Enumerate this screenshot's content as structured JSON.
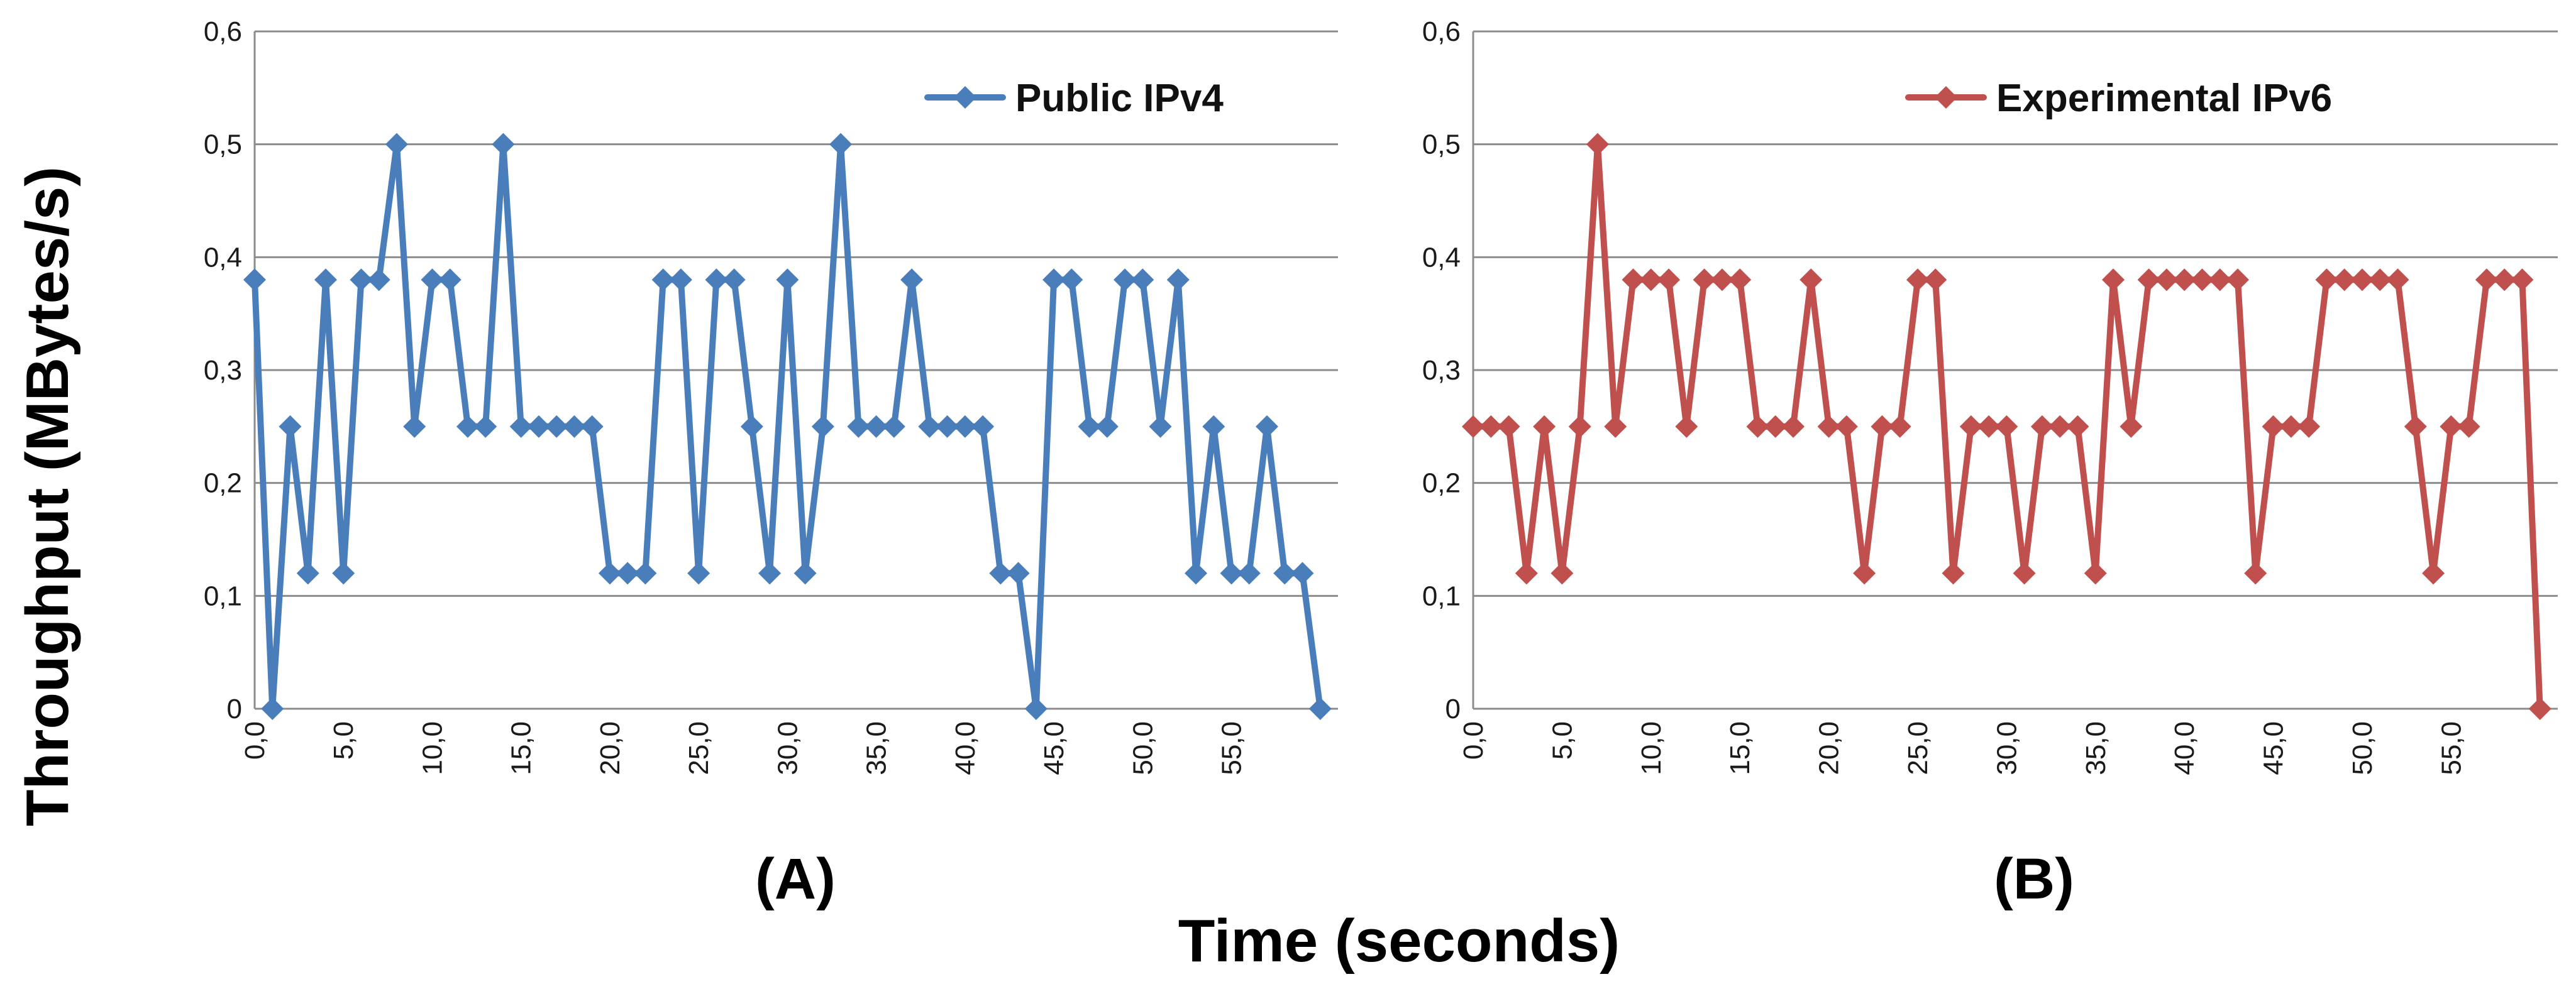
{
  "figure": {
    "xlabel": "Time (seconds)",
    "ylabel": "Throughput (MBytes/s)"
  },
  "chart_data": [
    {
      "type": "line",
      "panel_label": "(A)",
      "legend": "Public IPv4",
      "color": "#4a7ebb",
      "x_tick_labels": [
        "0,0",
        "5,0",
        "10,0",
        "15,0",
        "20,0",
        "25,0",
        "30,0",
        "35,0",
        "40,0",
        "45,0",
        "50,0",
        "55,0"
      ],
      "y_tick_labels": [
        "0",
        "0,1",
        "0,2",
        "0,3",
        "0,4",
        "0,5",
        "0,6"
      ],
      "ylim": [
        0,
        0.6
      ],
      "xlim": [
        0,
        61
      ],
      "series": [
        {
          "name": "Public IPv4",
          "values": [
            0.38,
            0,
            0.25,
            0.12,
            0.38,
            0.12,
            0.38,
            0.38,
            0.5,
            0.25,
            0.38,
            0.38,
            0.25,
            0.25,
            0.5,
            0.25,
            0.25,
            0.25,
            0.25,
            0.25,
            0.12,
            0.12,
            0.12,
            0.38,
            0.38,
            0.12,
            0.38,
            0.38,
            0.25,
            0.12,
            0.38,
            0.12,
            0.25,
            0.5,
            0.25,
            0.25,
            0.25,
            0.38,
            0.25,
            0.25,
            0.25,
            0.25,
            0.12,
            0.12,
            0,
            0.38,
            0.38,
            0.25,
            0.25,
            0.38,
            0.38,
            0.25,
            0.38,
            0.12,
            0.25,
            0.12,
            0.12,
            0.25,
            0.12,
            0.12,
            0
          ]
        }
      ]
    },
    {
      "type": "line",
      "panel_label": "(B)",
      "legend": "Experimental IPv6",
      "color": "#c0504d",
      "x_tick_labels": [
        "0,0",
        "5,0",
        "10,0",
        "15,0",
        "20,0",
        "25,0",
        "30,0",
        "35,0",
        "40,0",
        "45,0",
        "50,0",
        "55,0"
      ],
      "y_tick_labels": [
        "0",
        "0,1",
        "0,2",
        "0,3",
        "0,4",
        "0,5",
        "0,6"
      ],
      "ylim": [
        0,
        0.6
      ],
      "xlim": [
        0,
        61
      ],
      "series": [
        {
          "name": "Experimental IPv6",
          "values": [
            0.25,
            0.25,
            0.25,
            0.12,
            0.25,
            0.12,
            0.25,
            0.5,
            0.25,
            0.38,
            0.38,
            0.38,
            0.25,
            0.38,
            0.38,
            0.38,
            0.25,
            0.25,
            0.25,
            0.38,
            0.25,
            0.25,
            0.12,
            0.25,
            0.25,
            0.38,
            0.38,
            0.12,
            0.25,
            0.25,
            0.25,
            0.12,
            0.25,
            0.25,
            0.25,
            0.12,
            0.38,
            0.25,
            0.38,
            0.38,
            0.38,
            0.38,
            0.38,
            0.38,
            0.12,
            0.25,
            0.25,
            0.25,
            0.38,
            0.38,
            0.38,
            0.38,
            0.38,
            0.25,
            0.12,
            0.25,
            0.25,
            0.38,
            0.38,
            0.38,
            0
          ]
        }
      ]
    }
  ]
}
